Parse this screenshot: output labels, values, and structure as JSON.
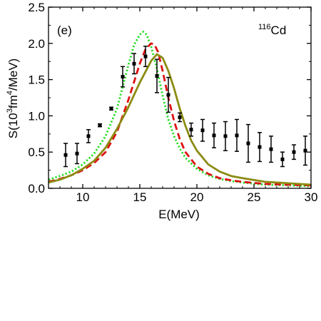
{
  "chart_data": {
    "type": "line",
    "panel_label": "(e)",
    "nucleus_label": {
      "mass": "116",
      "symbol": "Cd"
    },
    "xlabel": "E(MeV)",
    "ylabel": {
      "prefix": "S(10",
      "exp1": "3",
      "mid": "fm",
      "exp2": "4",
      "suffix": "/MeV)"
    },
    "xlim": [
      7,
      30
    ],
    "ylim": [
      0,
      2.5
    ],
    "xticks": [
      10,
      15,
      20,
      25,
      30
    ],
    "xtick_labels": [
      "10",
      "15",
      "20",
      "25",
      "30"
    ],
    "yticks": [
      0,
      0.5,
      1.0,
      1.5,
      2.0,
      2.5
    ],
    "ytick_labels": [
      "0.0",
      "0.5",
      "1.0",
      "1.5",
      "2.0",
      "2.5"
    ],
    "grid": false,
    "legend": "none",
    "experimental": [
      {
        "x": 8.5,
        "y": 0.46,
        "err": 0.16
      },
      {
        "x": 9.5,
        "y": 0.48,
        "err": 0.14
      },
      {
        "x": 10.5,
        "y": 0.72,
        "err": 0.09
      },
      {
        "x": 11.5,
        "y": 0.87,
        "err": 0.02
      },
      {
        "x": 12.5,
        "y": 1.1,
        "err": 0.02
      },
      {
        "x": 13.5,
        "y": 1.54,
        "err": 0.14
      },
      {
        "x": 14.5,
        "y": 1.72,
        "err": 0.14
      },
      {
        "x": 15.5,
        "y": 1.82,
        "err": 0.14
      },
      {
        "x": 16.5,
        "y": 1.55,
        "err": 0.23
      },
      {
        "x": 17.5,
        "y": 1.29,
        "err": 0.24
      },
      {
        "x": 18.5,
        "y": 0.98,
        "err": 0.06
      },
      {
        "x": 19.5,
        "y": 0.81,
        "err": 0.09
      },
      {
        "x": 20.5,
        "y": 0.8,
        "err": 0.15
      },
      {
        "x": 21.5,
        "y": 0.73,
        "err": 0.17
      },
      {
        "x": 22.5,
        "y": 0.72,
        "err": 0.2
      },
      {
        "x": 23.5,
        "y": 0.73,
        "err": 0.22
      },
      {
        "x": 24.5,
        "y": 0.62,
        "err": 0.26
      },
      {
        "x": 25.5,
        "y": 0.57,
        "err": 0.2
      },
      {
        "x": 26.5,
        "y": 0.54,
        "err": 0.18
      },
      {
        "x": 27.5,
        "y": 0.4,
        "err": 0.1
      },
      {
        "x": 28.5,
        "y": 0.5,
        "err": 0.1
      },
      {
        "x": 29.5,
        "y": 0.52,
        "err": 0.2
      }
    ],
    "series": [
      {
        "color": "#22dd22",
        "style": "dotted",
        "x": [
          7,
          8,
          9,
          10,
          11,
          12,
          13,
          14,
          14.5,
          15,
          15.3,
          15.6,
          16,
          16.5,
          17,
          17.5,
          18,
          18.5,
          19,
          20,
          21,
          22,
          23,
          24,
          26,
          28,
          30
        ],
        "y": [
          0.12,
          0.17,
          0.23,
          0.33,
          0.48,
          0.72,
          1.1,
          1.7,
          1.98,
          2.12,
          2.16,
          2.12,
          1.95,
          1.65,
          1.28,
          0.95,
          0.72,
          0.55,
          0.42,
          0.27,
          0.18,
          0.13,
          0.1,
          0.08,
          0.05,
          0.04,
          0.03
        ]
      },
      {
        "color": "#dd1111",
        "style": "dashed",
        "x": [
          7,
          8,
          9,
          10,
          11,
          12,
          13,
          14,
          15,
          15.5,
          16,
          16.3,
          16.6,
          17,
          17.5,
          18,
          18.5,
          19,
          20,
          21,
          22,
          23,
          24,
          26,
          28,
          30
        ],
        "y": [
          0.09,
          0.13,
          0.18,
          0.25,
          0.35,
          0.5,
          0.78,
          1.22,
          1.72,
          1.92,
          2.0,
          1.98,
          1.88,
          1.62,
          1.25,
          0.93,
          0.68,
          0.5,
          0.3,
          0.2,
          0.14,
          0.11,
          0.09,
          0.06,
          0.05,
          0.04
        ]
      },
      {
        "color": "#8b8b12",
        "style": "solid",
        "x": [
          7,
          8,
          9,
          10,
          11,
          12,
          13,
          14,
          15,
          16,
          16.5,
          17,
          17.5,
          18,
          18.5,
          19,
          19.5,
          20,
          21,
          22,
          23,
          24,
          26,
          28,
          30
        ],
        "y": [
          0.08,
          0.12,
          0.18,
          0.27,
          0.38,
          0.56,
          0.82,
          1.12,
          1.46,
          1.76,
          1.85,
          1.8,
          1.62,
          1.38,
          1.1,
          0.86,
          0.66,
          0.52,
          0.33,
          0.23,
          0.17,
          0.14,
          0.09,
          0.07,
          0.05
        ]
      }
    ]
  }
}
